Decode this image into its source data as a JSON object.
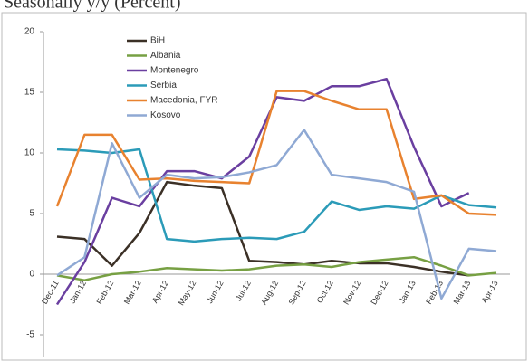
{
  "chart_data": {
    "type": "line",
    "title": "Seasonally y/y (Percent)",
    "categories": [
      "Dec-11",
      "Jan-12",
      "Feb-12",
      "Mar-12",
      "Apr-12",
      "May-12",
      "Jun-12",
      "Jul-12",
      "Aug-12",
      "Sep-12",
      "Oct-12",
      "Nov-12",
      "Dec-12",
      "Jan-13",
      "Feb-13",
      "Mar-13",
      "Apr-13"
    ],
    "series": [
      {
        "name": "BiH",
        "color": "#3b3026",
        "values": [
          3.1,
          2.9,
          0.7,
          3.4,
          7.6,
          7.3,
          7.1,
          1.1,
          1.0,
          0.8,
          1.1,
          0.9,
          0.9,
          0.6,
          0.2,
          -0.1,
          null
        ]
      },
      {
        "name": "Albania",
        "color": "#77a043",
        "values": [
          -0.1,
          -0.5,
          0.0,
          0.2,
          0.5,
          0.4,
          0.3,
          0.4,
          0.7,
          0.8,
          0.6,
          1.0,
          1.2,
          1.4,
          0.7,
          -0.1,
          0.1
        ]
      },
      {
        "name": "Montenegro",
        "color": "#6a3fa0",
        "values": [
          -2.5,
          1.0,
          6.3,
          5.6,
          8.5,
          8.5,
          7.9,
          9.7,
          14.6,
          14.3,
          15.5,
          15.5,
          16.1,
          10.5,
          5.6,
          6.7,
          null
        ]
      },
      {
        "name": "Serbia",
        "color": "#2b9bb8",
        "values": [
          10.3,
          10.2,
          10.0,
          10.3,
          2.9,
          2.7,
          2.9,
          3.0,
          2.9,
          3.5,
          6.0,
          5.3,
          5.6,
          5.4,
          6.5,
          5.7,
          5.5
        ]
      },
      {
        "name": "Macedonia, FYR",
        "color": "#e8822f",
        "values": [
          5.6,
          11.5,
          11.5,
          7.8,
          7.9,
          7.7,
          7.6,
          7.5,
          15.1,
          15.1,
          14.3,
          13.6,
          13.6,
          6.2,
          6.5,
          5.0,
          4.9
        ]
      },
      {
        "name": "Kosovo",
        "color": "#8fa9d4",
        "values": [
          -0.1,
          1.4,
          10.8,
          6.3,
          8.2,
          7.9,
          8.0,
          8.4,
          9.0,
          11.9,
          8.2,
          7.9,
          7.6,
          6.8,
          -2.0,
          2.1,
          1.9
        ]
      }
    ],
    "ylim": [
      -5,
      20
    ],
    "yticks": [
      -5,
      0,
      5,
      10,
      15,
      20
    ],
    "grid": false,
    "legend": "upper left"
  }
}
